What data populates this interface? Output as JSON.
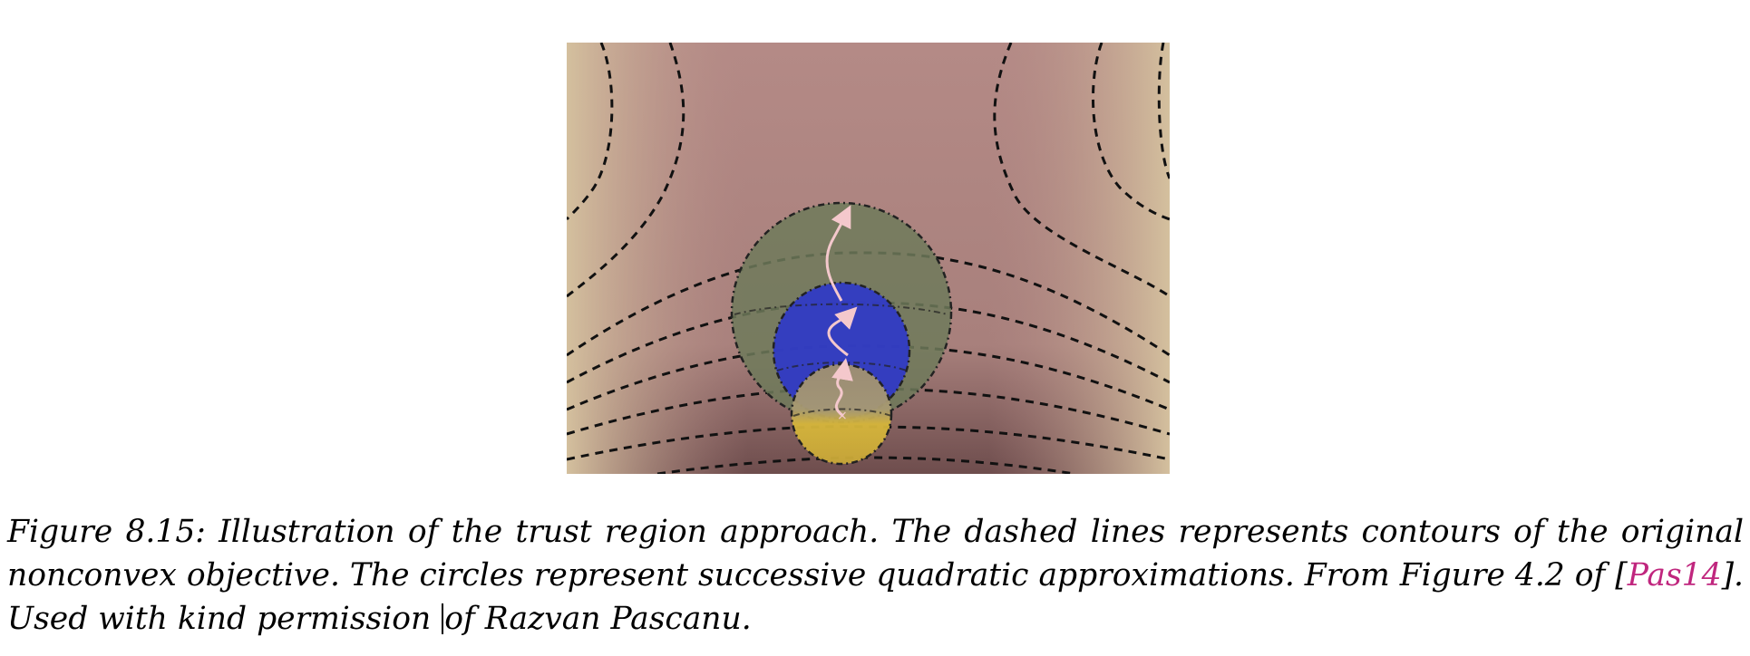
{
  "figure": {
    "colors": {
      "bg_center": "#b48a86",
      "bg_edge": "#d4c09e",
      "bg_bottom": "#6e4d4d",
      "contour": "#111111",
      "outer_circle": "#6e7a5a",
      "middle_circle": "#2f38c8",
      "inner_circle_top": "#a09070",
      "inner_circle_bottom": "#d6b63a",
      "path_arrow": "#f4c8cc"
    }
  },
  "caption": {
    "label": "Figure 8.15:",
    "text_part1": " Illustration of the trust region approach. The dashed lines represents contours of the original nonconvex objective. The circles represent successive quadratic approximations. From Figure 4.2 of [",
    "citation": "Pas14",
    "text_part2": "]. Used with kind permission ",
    "text_part3": "of Razvan Pascanu."
  }
}
